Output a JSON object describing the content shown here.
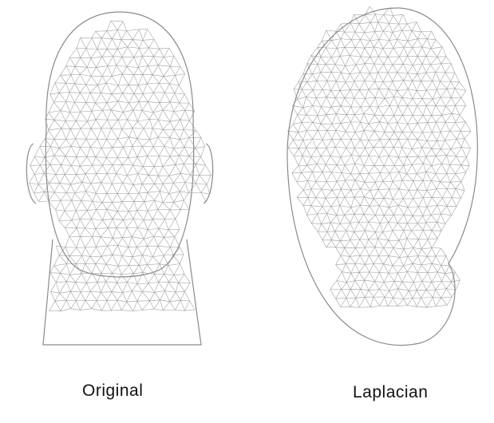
{
  "figure": {
    "left": {
      "caption": "Original"
    },
    "right": {
      "caption": "Laplacian"
    }
  }
}
